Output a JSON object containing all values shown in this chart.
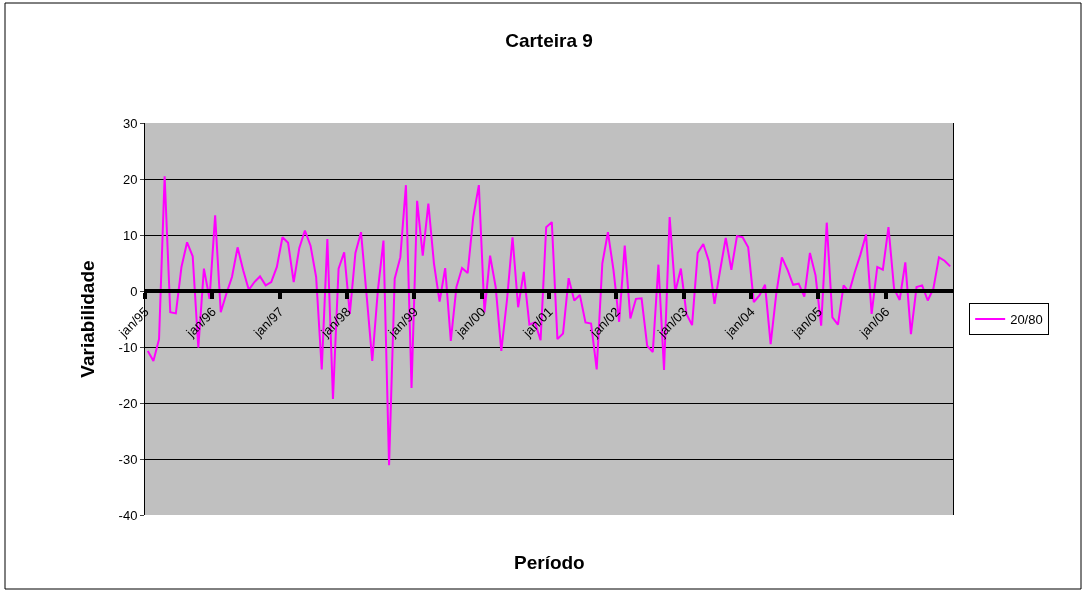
{
  "chart_data": {
    "type": "line",
    "title": "Carteira 9",
    "xlabel": "Período",
    "ylabel": "Variabilidade",
    "categories": [
      "jan/95",
      null,
      null,
      null,
      null,
      null,
      null,
      null,
      null,
      null,
      null,
      null,
      "jan/96",
      null,
      null,
      null,
      null,
      null,
      null,
      null,
      null,
      null,
      null,
      null,
      "jan/97",
      null,
      null,
      null,
      null,
      null,
      null,
      null,
      null,
      null,
      null,
      null,
      "jan/98",
      null,
      null,
      null,
      null,
      null,
      null,
      null,
      null,
      null,
      null,
      null,
      "jan/99",
      null,
      null,
      null,
      null,
      null,
      null,
      null,
      null,
      null,
      null,
      null,
      "jan/00",
      null,
      null,
      null,
      null,
      null,
      null,
      null,
      null,
      null,
      null,
      null,
      "jan/01",
      null,
      null,
      null,
      null,
      null,
      null,
      null,
      null,
      null,
      null,
      null,
      "jan/02",
      null,
      null,
      null,
      null,
      null,
      null,
      null,
      null,
      null,
      null,
      null,
      "jan/03",
      null,
      null,
      null,
      null,
      null,
      null,
      null,
      null,
      null,
      null,
      null,
      "jan/04",
      null,
      null,
      null,
      null,
      null,
      null,
      null,
      null,
      null,
      null,
      null,
      "jan/05",
      null,
      null,
      null,
      null,
      null,
      null,
      null,
      null,
      null,
      null,
      null,
      "jan/06",
      null,
      null,
      null,
      null,
      null,
      null,
      null,
      null,
      null,
      null,
      null
    ],
    "series": [
      {
        "name": "20/80",
        "color": "#ff00ff",
        "values": [
          -10.7,
          -12.5,
          -8.6,
          20.5,
          -3.8,
          -4.0,
          4.3,
          8.7,
          6.2,
          -10.1,
          4.0,
          -1.4,
          13.5,
          -3.8,
          -0.5,
          2.5,
          7.8,
          3.7,
          0.2,
          1.6,
          2.6,
          1.0,
          1.6,
          4.3,
          9.6,
          8.6,
          1.6,
          7.7,
          10.8,
          8.1,
          2.5,
          -14.0,
          9.3,
          -19.3,
          4.0,
          6.9,
          -4.1,
          6.8,
          10.5,
          -0.8,
          -12.5,
          0.1,
          9.0,
          -31.1,
          2.2,
          6.0,
          18.9,
          -17.3,
          16.1,
          6.3,
          15.6,
          4.9,
          -1.9,
          4.1,
          -8.9,
          0.7,
          4.1,
          3.2,
          13.2,
          18.9,
          -3.8,
          6.3,
          0.7,
          -10.7,
          -1.7,
          9.6,
          -2.9,
          3.4,
          -6.0,
          -5.6,
          -8.8,
          11.4,
          12.3,
          -8.6,
          -7.6,
          2.3,
          -1.7,
          -0.7,
          -5.6,
          -5.8,
          -14.0,
          4.9,
          10.5,
          3.7,
          -5.5,
          8.1,
          -4.9,
          -1.4,
          -1.3,
          -9.8,
          -10.9,
          4.7,
          -14.1,
          13.2,
          -0.2,
          4.0,
          -4.1,
          -6.1,
          6.8,
          8.4,
          5.3,
          -2.3,
          3.7,
          9.5,
          3.8,
          9.8,
          9.6,
          7.8,
          -2.0,
          -0.8,
          1.1,
          -9.5,
          -0.5,
          6.0,
          3.8,
          1.1,
          1.3,
          -1.0,
          6.8,
          2.8,
          -6.2,
          12.2,
          -4.7,
          -6.0,
          1.0,
          -0.2,
          3.4,
          6.5,
          10.1,
          -4.1,
          4.3,
          3.8,
          11.4,
          0.4,
          -1.6,
          5.1,
          -7.7,
          0.7,
          1.0,
          -1.7,
          0.4,
          6.0,
          5.4,
          4.4
        ]
      }
    ],
    "ylim": [
      -40,
      30
    ],
    "yticks": [
      -40,
      -30,
      -20,
      -10,
      0,
      10,
      20,
      30
    ],
    "grid": "y",
    "legend": "right",
    "marker": "none",
    "line_style": "solid"
  }
}
